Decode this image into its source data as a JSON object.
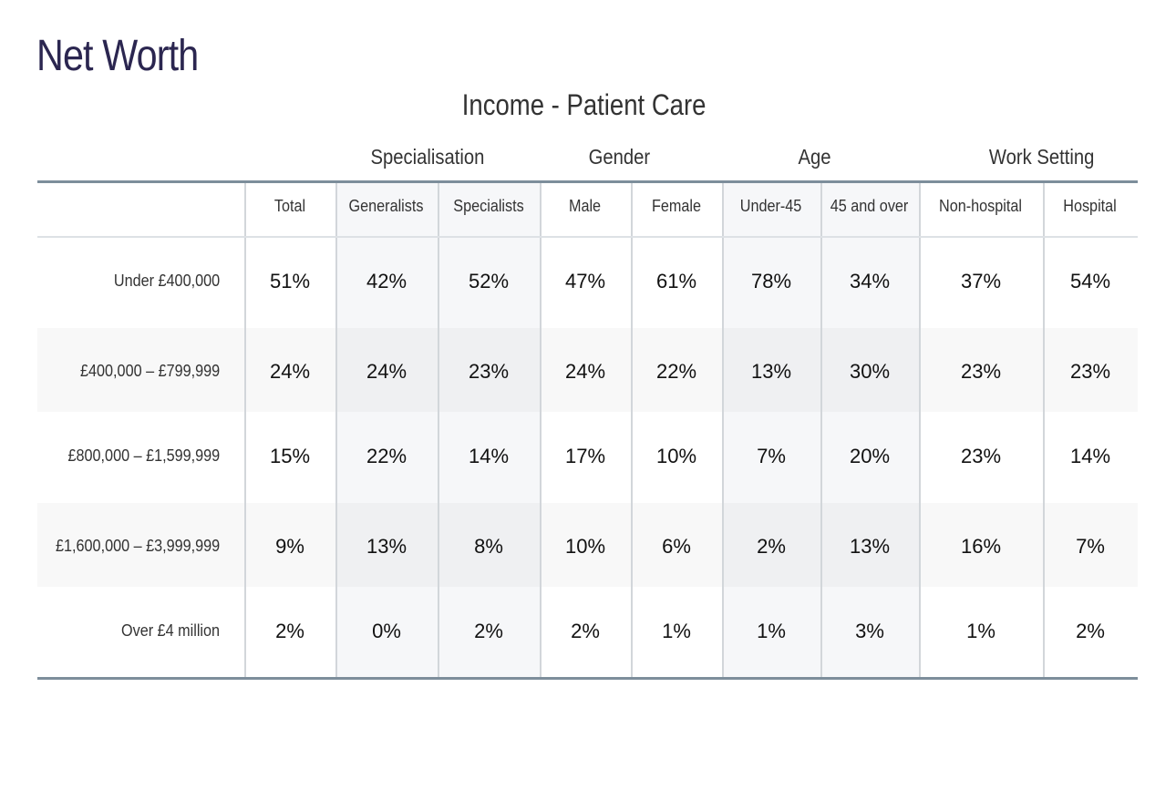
{
  "chart_data": {
    "type": "table",
    "title": "Net Worth",
    "subtitle": "Income - Patient Care",
    "groups": [
      "Specialisation",
      "Gender",
      "Age",
      "Work Setting"
    ],
    "columns": [
      "Total",
      "Generalists",
      "Specialists",
      "Male",
      "Female",
      "Under-45",
      "45 and over",
      "Non-hospital",
      "Hospital"
    ],
    "rows": [
      {
        "label": "Under £400,000",
        "values": [
          "51%",
          "42%",
          "52%",
          "47%",
          "61%",
          "78%",
          "34%",
          "37%",
          "54%"
        ]
      },
      {
        "label": "£400,000 – £799,999",
        "values": [
          "24%",
          "24%",
          "23%",
          "24%",
          "22%",
          "13%",
          "30%",
          "23%",
          "23%"
        ]
      },
      {
        "label": "£800,000 – £1,599,999",
        "values": [
          "15%",
          "22%",
          "14%",
          "17%",
          "10%",
          "7%",
          "20%",
          "23%",
          "14%"
        ]
      },
      {
        "label": "£1,600,000 – £3,999,999",
        "values": [
          "9%",
          "13%",
          "8%",
          "10%",
          "6%",
          "2%",
          "13%",
          "16%",
          "7%"
        ]
      },
      {
        "label": "Over £4 million",
        "values": [
          "2%",
          "0%",
          "2%",
          "2%",
          "1%",
          "1%",
          "3%",
          "1%",
          "2%"
        ]
      }
    ]
  }
}
